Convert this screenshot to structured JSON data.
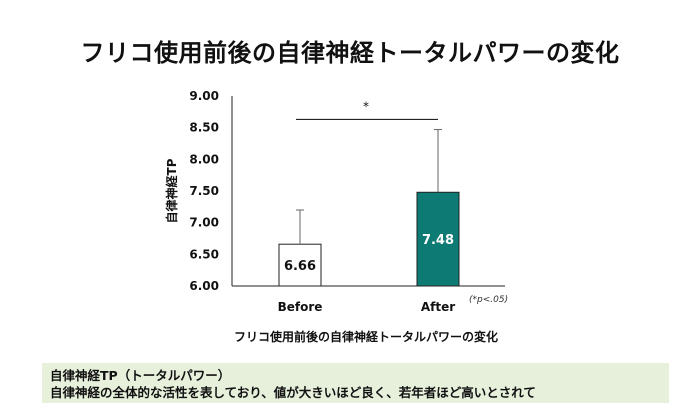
{
  "page": {
    "title": "フリコ使用前後の自律神経トータルパワーの変化"
  },
  "chart_data": {
    "type": "bar",
    "title": "",
    "xlabel": "フリコ使用前後の自律神経トータルパワーの変化",
    "ylabel": "自律神経TP",
    "ylim": [
      6.0,
      9.0
    ],
    "yticks": [
      "6.00",
      "6.50",
      "7.00",
      "7.50",
      "8.00",
      "8.50",
      "9.00"
    ],
    "categories": [
      "Before",
      "After"
    ],
    "values": [
      6.66,
      7.48
    ],
    "value_labels": [
      "6.66",
      "7.48"
    ],
    "error_upper": [
      7.2,
      8.47
    ],
    "bar_fills": [
      "#ffffff",
      "#0e7a74"
    ],
    "bar_label_colors": [
      "#111111",
      "#ffffff"
    ],
    "significance": {
      "label": "*",
      "between": [
        "Before",
        "After"
      ]
    },
    "significance_note": "(*p<.05)",
    "grid": false,
    "legend": "none"
  },
  "footnote": {
    "line1": "自律神経TP（トータルパワー）",
    "line2": "自律神経の全体的な活性を表しており、値が大きいほど良く、若年者ほど高いとされて"
  }
}
